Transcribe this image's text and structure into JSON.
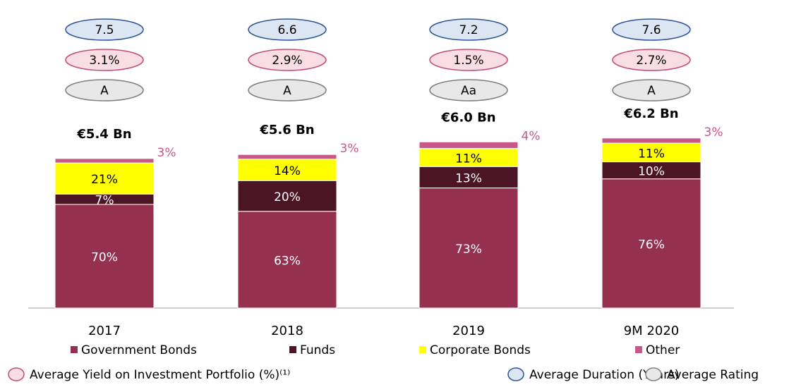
{
  "chart_data": {
    "type": "bar",
    "stacked": true,
    "categories": [
      "2017",
      "2018",
      "2019",
      "9M 2020"
    ],
    "series": [
      {
        "name": "Government Bonds",
        "color": "#95304f",
        "values": [
          70,
          63,
          73,
          76
        ],
        "value_labels": [
          "70%",
          "63%",
          "73%",
          "76%"
        ]
      },
      {
        "name": "Funds",
        "color": "#4b1524",
        "values": [
          7,
          20,
          13,
          10
        ],
        "value_labels": [
          "7%",
          "20%",
          "13%",
          "10%"
        ]
      },
      {
        "name": "Corporate Bonds",
        "color": "#ffff00",
        "values": [
          21,
          14,
          11,
          11
        ],
        "value_labels": [
          "21%",
          "14%",
          "11%",
          "11%"
        ]
      },
      {
        "name": "Other",
        "color": "#c8578a",
        "values": [
          3,
          3,
          4,
          3
        ],
        "value_labels": [
          "3%",
          "3%",
          "4%",
          "3%"
        ]
      }
    ],
    "totals": {
      "values": [
        5.4,
        5.6,
        6.0,
        6.2
      ],
      "value_labels": [
        "€5.4 Bn",
        "€5.6 Bn",
        "€6.0 Bn",
        "€6.2 Bn"
      ]
    },
    "indicators": [
      {
        "name": "Average Duration (Years)",
        "fill": "#dce6f2",
        "stroke": "#2f5597",
        "values": [
          7.5,
          6.6,
          7.2,
          7.6
        ]
      },
      {
        "name": "Average Yield on Investment Portfolio (%)⁽¹⁾",
        "fill": "#f9dde5",
        "stroke": "#c0506e",
        "values": [
          3.1,
          2.9,
          1.5,
          2.7
        ],
        "value_labels": [
          "3.1%",
          "2.9%",
          "1.5%",
          "2.7%"
        ]
      },
      {
        "name": "Average Rating",
        "fill": "#e8e8e8",
        "stroke": "#7f7f7f",
        "labels": [
          "A",
          "A",
          "Aa",
          "A"
        ]
      }
    ]
  }
}
